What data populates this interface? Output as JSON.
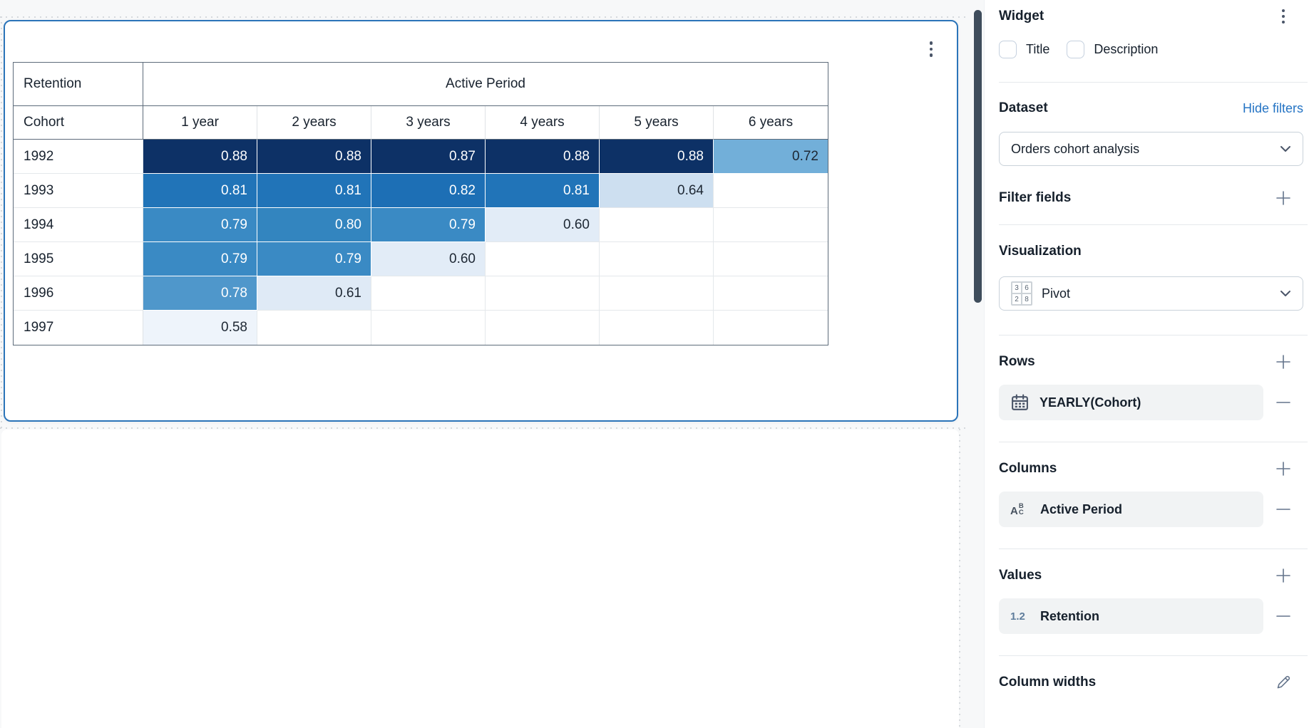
{
  "widget": {
    "table": {
      "corner_label": "Retention",
      "col_group_label": "Active Period",
      "row_dim_label": "Cohort",
      "col_headers": [
        "1 year",
        "2 years",
        "3 years",
        "4 years",
        "5 years",
        "6 years"
      ],
      "rows": [
        {
          "label": "1992",
          "values": [
            "0.88",
            "0.88",
            "0.87",
            "0.88",
            "0.88",
            "0.72"
          ]
        },
        {
          "label": "1993",
          "values": [
            "0.81",
            "0.81",
            "0.82",
            "0.81",
            "0.64",
            null
          ]
        },
        {
          "label": "1994",
          "values": [
            "0.79",
            "0.80",
            "0.79",
            "0.60",
            null,
            null
          ]
        },
        {
          "label": "1995",
          "values": [
            "0.79",
            "0.79",
            "0.60",
            null,
            null,
            null
          ]
        },
        {
          "label": "1996",
          "values": [
            "0.78",
            "0.61",
            null,
            null,
            null,
            null
          ]
        },
        {
          "label": "1997",
          "values": [
            "0.58",
            null,
            null,
            null,
            null,
            null
          ]
        }
      ]
    }
  },
  "panel": {
    "title": "Widget",
    "options": [
      {
        "label": "Title",
        "checked": false
      },
      {
        "label": "Description",
        "checked": false
      }
    ],
    "dataset": {
      "heading": "Dataset",
      "action": "Hide filters",
      "value": "Orders cohort analysis"
    },
    "filter_fields": {
      "heading": "Filter fields"
    },
    "visualization": {
      "heading": "Visualization",
      "value": "Pivot",
      "icon_numbers": [
        "3",
        "6",
        "2",
        "8"
      ]
    },
    "rows_section": {
      "heading": "Rows",
      "field": "YEARLY(Cohort)"
    },
    "columns_section": {
      "heading": "Columns",
      "field": "Active Period"
    },
    "values_section": {
      "heading": "Values",
      "field": "Retention",
      "icon_text": "1.2"
    },
    "column_widths": {
      "heading": "Column widths"
    }
  },
  "colors": {
    "selection_border": "#2b74b9",
    "link": "#2574c4",
    "canvas_bg": "#f7f8f9",
    "header_border": "#5d6b7a",
    "cell_scale": {
      "0.88": {
        "bg": "#0d3166",
        "fg": "#ffffff",
        "border": "#ffffff"
      },
      "0.87": {
        "bg": "#0d3166",
        "fg": "#ffffff",
        "border": "#ffffff"
      },
      "0.82": {
        "bg": "#1d6fb5",
        "fg": "#ffffff",
        "border": "#ffffff"
      },
      "0.81": {
        "bg": "#2174b8",
        "fg": "#ffffff",
        "border": "#ffffff"
      },
      "0.80": {
        "bg": "#3385bf",
        "fg": "#ffffff",
        "border": "#ffffff"
      },
      "0.79": {
        "bg": "#3a8ac4",
        "fg": "#ffffff",
        "border": "#ffffff"
      },
      "0.78": {
        "bg": "#4f97cb",
        "fg": "#ffffff",
        "border": "#ffffff"
      },
      "0.72": {
        "bg": "#72afd9",
        "fg": "#1d2733",
        "border": "#ffffff"
      },
      "0.64": {
        "bg": "#cddff0",
        "fg": "#1d2733",
        "border": "#e4e8eb"
      },
      "0.61": {
        "bg": "#dfeaf6",
        "fg": "#1d2733",
        "border": "#e4e8eb"
      },
      "0.60": {
        "bg": "#e2ecf7",
        "fg": "#1d2733",
        "border": "#e4e8eb"
      },
      "0.58": {
        "bg": "#eef4fb",
        "fg": "#1d2733",
        "border": "#e4e8eb"
      }
    }
  }
}
